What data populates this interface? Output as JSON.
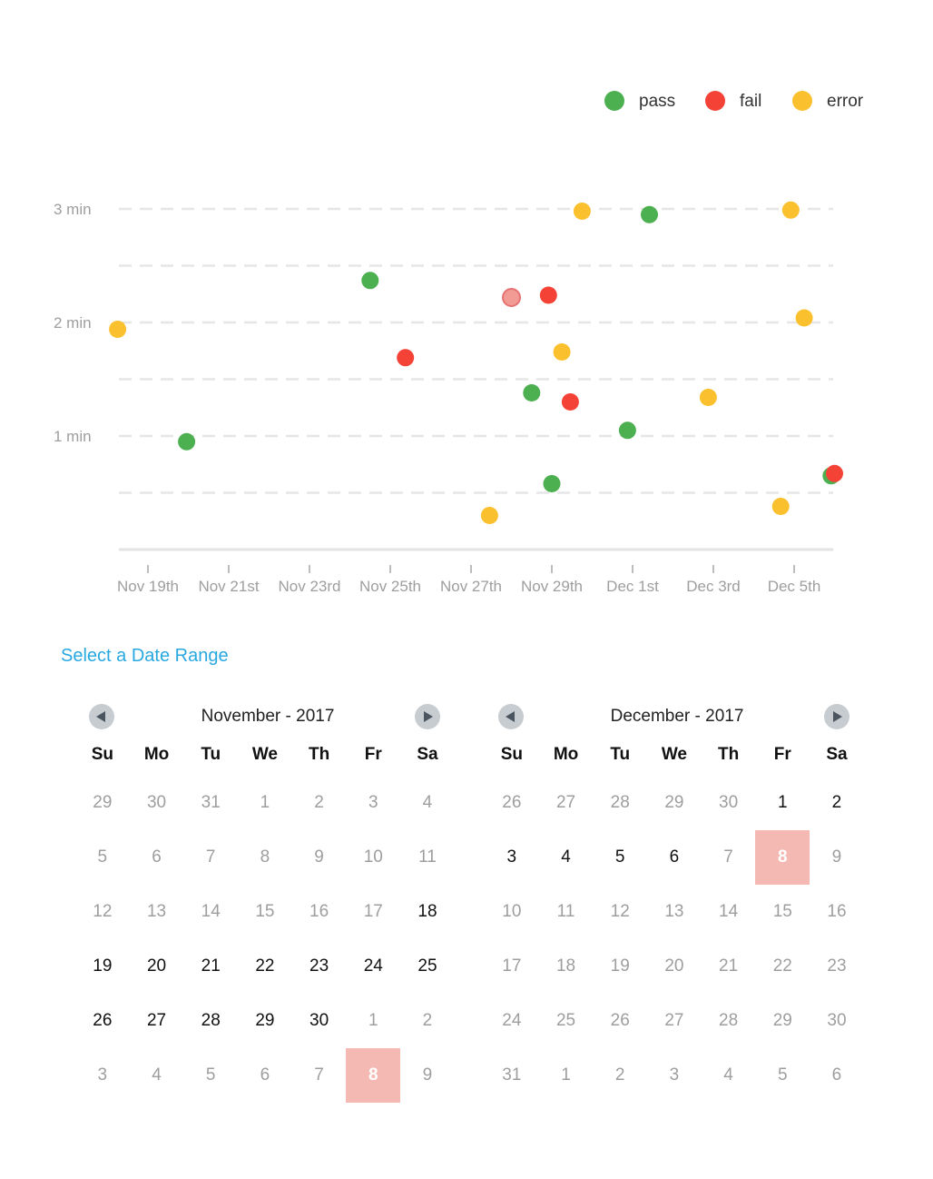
{
  "legend": [
    {
      "label": "pass",
      "color": "#4caf50"
    },
    {
      "label": "fail",
      "color": "#f44336"
    },
    {
      "label": "error",
      "color": "#fbc02d"
    }
  ],
  "chart_data": {
    "type": "scatter",
    "title": "",
    "xlabel": "",
    "ylabel": "",
    "x_ticks": [
      "Nov 19th",
      "Nov 21st",
      "Nov 23rd",
      "Nov 25th",
      "Nov 27th",
      "Nov 29th",
      "Dec 1st",
      "Dec 3rd",
      "Dec 5th"
    ],
    "y_ticks": [
      "1 min",
      "2 min",
      "3 min"
    ],
    "xlim": [
      "2017-11-18T06:00",
      "2017-12-06T00:00"
    ],
    "ylim_min": [
      0,
      3
    ],
    "grid": true,
    "legend_position": "top-right",
    "series": [
      {
        "name": "pass",
        "color": "#4caf50",
        "points": [
          [
            "2017-11-19T23:00",
            0.95
          ],
          [
            "2017-11-24T12:00",
            2.37
          ],
          [
            "2017-11-28T12:00",
            1.38
          ],
          [
            "2017-11-29T00:00",
            0.58
          ],
          [
            "2017-11-30T21:00",
            1.05
          ],
          [
            "2017-12-01T10:00",
            2.95
          ],
          [
            "2017-12-05T22:00",
            0.65
          ]
        ]
      },
      {
        "name": "fail",
        "color": "#f44336",
        "points": [
          [
            "2017-11-25T09:00",
            1.69
          ],
          [
            "2017-11-28T00:00",
            2.22
          ],
          [
            "2017-11-28T22:00",
            2.24
          ],
          [
            "2017-11-29T11:00",
            1.3
          ],
          [
            "2017-12-06T00:00",
            0.67
          ]
        ]
      },
      {
        "name": "error",
        "color": "#fbc02d",
        "points": [
          [
            "2017-11-18T06:00",
            1.94
          ],
          [
            "2017-11-27T11:00",
            0.3
          ],
          [
            "2017-11-29T06:00",
            1.74
          ],
          [
            "2017-11-29T18:00",
            2.98
          ],
          [
            "2017-12-02T21:00",
            1.34
          ],
          [
            "2017-12-04T16:00",
            0.38
          ],
          [
            "2017-12-04T22:00",
            2.99
          ],
          [
            "2017-12-05T06:00",
            2.04
          ]
        ]
      }
    ]
  },
  "date_range": {
    "title": "Select a Date Range",
    "weekdays": [
      "Su",
      "Mo",
      "Tu",
      "We",
      "Th",
      "Fr",
      "Sa"
    ],
    "calendars": [
      {
        "month_label": "November - 2017",
        "days": [
          [
            "29",
            "muted"
          ],
          [
            "30",
            "muted"
          ],
          [
            "31",
            "muted"
          ],
          [
            "1",
            "muted"
          ],
          [
            "2",
            "muted"
          ],
          [
            "3",
            "muted"
          ],
          [
            "4",
            "muted"
          ],
          [
            "5",
            "muted"
          ],
          [
            "6",
            "muted"
          ],
          [
            "7",
            "muted"
          ],
          [
            "8",
            "muted"
          ],
          [
            "9",
            "muted"
          ],
          [
            "10",
            "muted"
          ],
          [
            "11",
            "muted"
          ],
          [
            "12",
            "muted"
          ],
          [
            "13",
            "muted"
          ],
          [
            "14",
            "muted"
          ],
          [
            "15",
            "muted"
          ],
          [
            "16",
            "muted"
          ],
          [
            "17",
            "muted"
          ],
          [
            "18",
            "active"
          ],
          [
            "19",
            "active"
          ],
          [
            "20",
            "active"
          ],
          [
            "21",
            "active"
          ],
          [
            "22",
            "active"
          ],
          [
            "23",
            "active"
          ],
          [
            "24",
            "active"
          ],
          [
            "25",
            "active"
          ],
          [
            "26",
            "active"
          ],
          [
            "27",
            "active"
          ],
          [
            "28",
            "active"
          ],
          [
            "29",
            "active"
          ],
          [
            "30",
            "active"
          ],
          [
            "1",
            "muted"
          ],
          [
            "2",
            "muted"
          ],
          [
            "3",
            "muted"
          ],
          [
            "4",
            "muted"
          ],
          [
            "5",
            "muted"
          ],
          [
            "6",
            "muted"
          ],
          [
            "7",
            "muted"
          ],
          [
            "8",
            "selected"
          ],
          [
            "9",
            "muted"
          ]
        ]
      },
      {
        "month_label": "December - 2017",
        "days": [
          [
            "26",
            "muted"
          ],
          [
            "27",
            "muted"
          ],
          [
            "28",
            "muted"
          ],
          [
            "29",
            "muted"
          ],
          [
            "30",
            "muted"
          ],
          [
            "1",
            "active"
          ],
          [
            "2",
            "active"
          ],
          [
            "3",
            "active"
          ],
          [
            "4",
            "active"
          ],
          [
            "5",
            "active"
          ],
          [
            "6",
            "active"
          ],
          [
            "7",
            "muted"
          ],
          [
            "8",
            "selected"
          ],
          [
            "9",
            "muted"
          ],
          [
            "10",
            "muted"
          ],
          [
            "11",
            "muted"
          ],
          [
            "12",
            "muted"
          ],
          [
            "13",
            "muted"
          ],
          [
            "14",
            "muted"
          ],
          [
            "15",
            "muted"
          ],
          [
            "16",
            "muted"
          ],
          [
            "17",
            "muted"
          ],
          [
            "18",
            "muted"
          ],
          [
            "19",
            "muted"
          ],
          [
            "20",
            "muted"
          ],
          [
            "21",
            "muted"
          ],
          [
            "22",
            "muted"
          ],
          [
            "23",
            "muted"
          ],
          [
            "24",
            "muted"
          ],
          [
            "25",
            "muted"
          ],
          [
            "26",
            "muted"
          ],
          [
            "27",
            "muted"
          ],
          [
            "28",
            "muted"
          ],
          [
            "29",
            "muted"
          ],
          [
            "30",
            "muted"
          ],
          [
            "31",
            "muted"
          ],
          [
            "1",
            "muted"
          ],
          [
            "2",
            "muted"
          ],
          [
            "3",
            "muted"
          ],
          [
            "4",
            "muted"
          ],
          [
            "5",
            "muted"
          ],
          [
            "6",
            "muted"
          ]
        ]
      }
    ]
  }
}
